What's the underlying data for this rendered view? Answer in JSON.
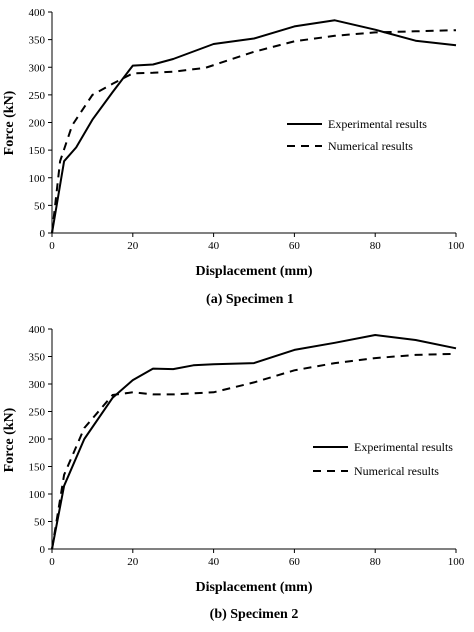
{
  "chart_data": [
    {
      "type": "line",
      "caption": "(a) Specimen 1",
      "xlabel": "Displacement (mm)",
      "ylabel": "Force (kN)",
      "xlim": [
        0,
        100
      ],
      "ylim": [
        0,
        400
      ],
      "xticks": [
        "0",
        "20",
        "40",
        "60",
        "80",
        "100"
      ],
      "yticks": [
        "0",
        "50",
        "100",
        "150",
        "200",
        "250",
        "300",
        "350",
        "400"
      ],
      "legend_position": "right",
      "series": [
        {
          "name": "Experimental results",
          "style": "solid",
          "x": [
            0,
            3,
            6,
            10,
            15,
            20,
            25,
            30,
            40,
            50,
            60,
            70,
            80,
            90,
            100
          ],
          "y": [
            0,
            130,
            155,
            205,
            255,
            303,
            305,
            315,
            342,
            352,
            374,
            385,
            368,
            348,
            340
          ]
        },
        {
          "name": "Numerical results",
          "style": "dashed",
          "x": [
            0,
            2,
            5,
            10,
            15,
            20,
            25,
            30,
            38,
            50,
            60,
            70,
            80,
            90,
            100
          ],
          "y": [
            0,
            130,
            195,
            250,
            270,
            289,
            290,
            292,
            299,
            328,
            347,
            357,
            363,
            365,
            367
          ]
        }
      ]
    },
    {
      "type": "line",
      "caption": "(b) Specimen 2",
      "xlabel": "Displacement (mm)",
      "ylabel": "Force (kN)",
      "xlim": [
        0,
        100
      ],
      "ylim": [
        0,
        400
      ],
      "xticks": [
        "0",
        "20",
        "40",
        "60",
        "80",
        "100"
      ],
      "yticks": [
        "0",
        "50",
        "100",
        "150",
        "200",
        "250",
        "300",
        "350",
        "400"
      ],
      "legend_position": "right",
      "series": [
        {
          "name": "Experimental results",
          "style": "solid",
          "x": [
            0,
            3,
            8,
            15,
            20,
            25,
            30,
            35,
            40,
            50,
            60,
            70,
            80,
            90,
            100
          ],
          "y": [
            0,
            115,
            200,
            275,
            307,
            328,
            327,
            334,
            336,
            338,
            362,
            375,
            389,
            380,
            365
          ]
        },
        {
          "name": "Numerical results",
          "style": "dashed",
          "x": [
            0,
            3,
            8,
            15,
            20,
            25,
            30,
            40,
            50,
            60,
            70,
            80,
            90,
            100
          ],
          "y": [
            0,
            135,
            220,
            280,
            285,
            281,
            281,
            285,
            303,
            325,
            338,
            347,
            353,
            355
          ]
        }
      ]
    }
  ]
}
